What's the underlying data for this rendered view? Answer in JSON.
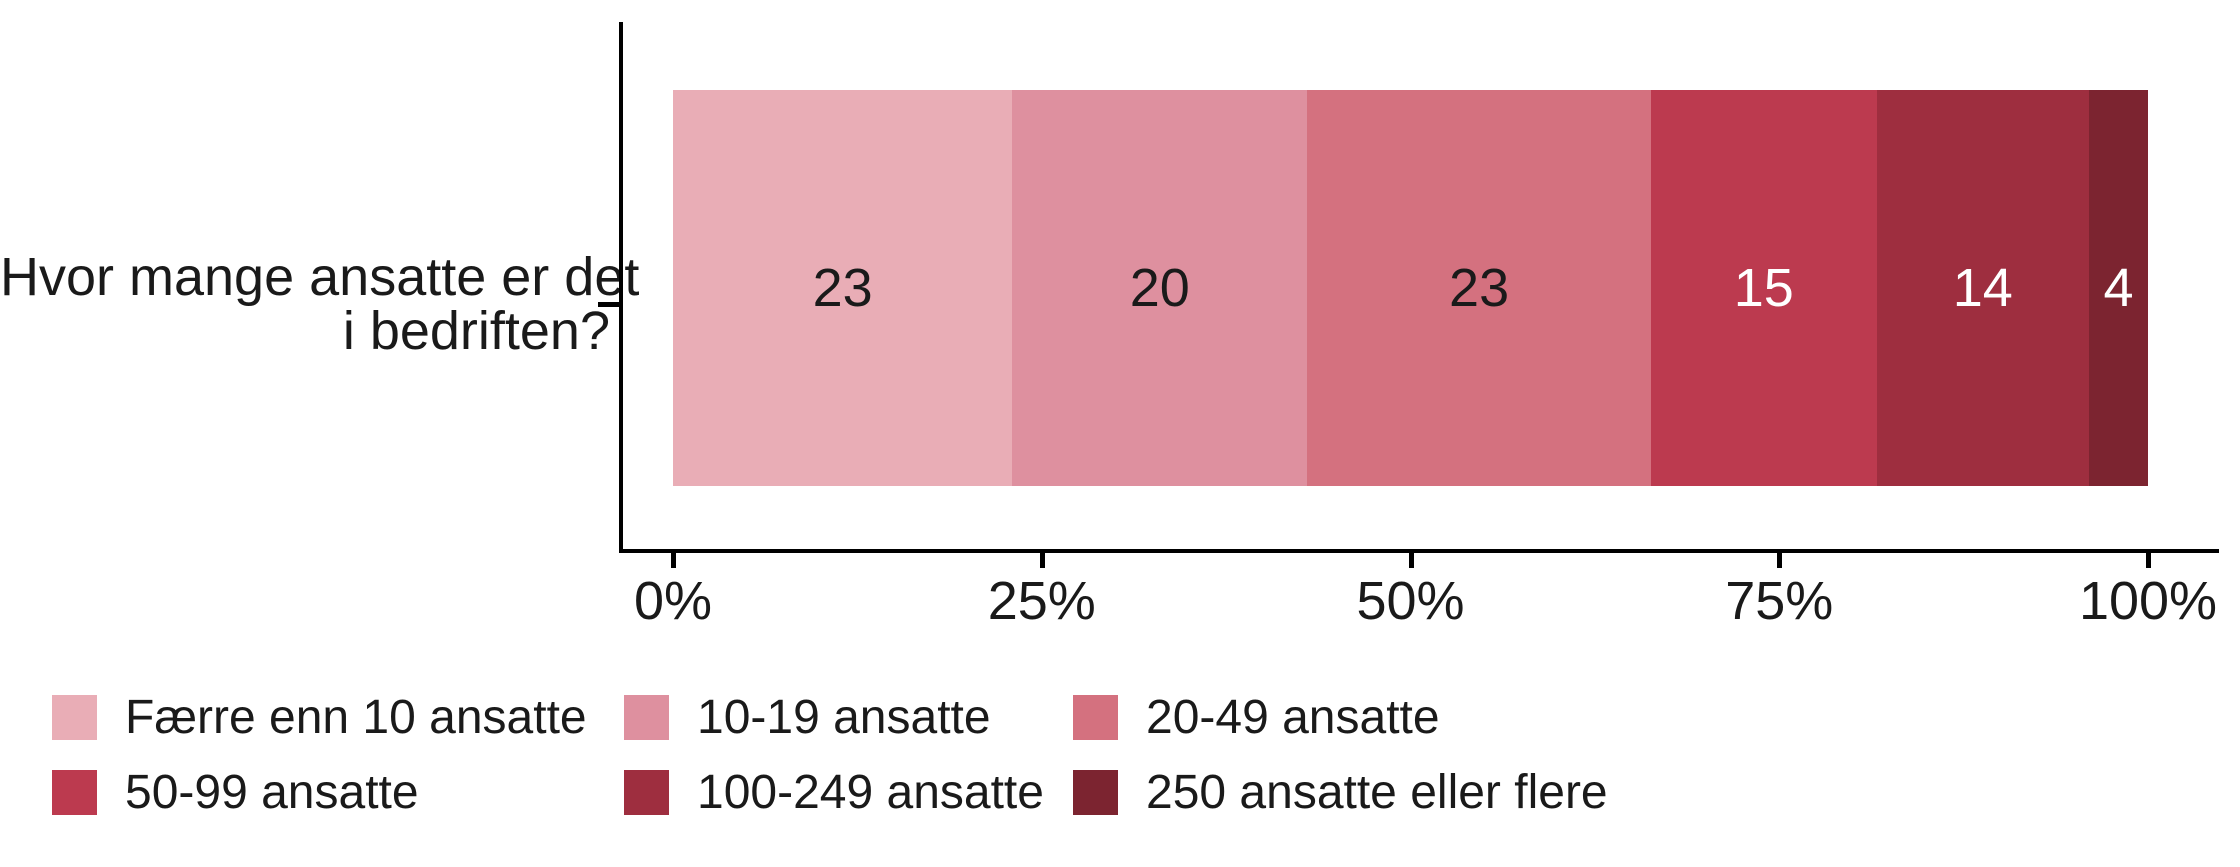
{
  "chart_data": {
    "type": "bar",
    "variant": "horizontal-stacked-percent",
    "title": "",
    "question_label_lines": [
      "Hvor mange ansatte er det",
      "i bedriften?"
    ],
    "x_ticks": [
      "0%",
      "25%",
      "50%",
      "75%",
      "100%"
    ],
    "xlim": [
      0,
      100
    ],
    "grid": false,
    "legend_position": "bottom",
    "axis_color": "#000000",
    "text_color": "#1a1a1a",
    "segments": [
      {
        "label": "Færre enn 10 ansatte",
        "value": "23",
        "pct": 23.0,
        "color": "#e9adb6",
        "value_color": "#1a1a1a"
      },
      {
        "label": "10-19 ansatte",
        "value": "20",
        "pct": 20.0,
        "color": "#de909f",
        "value_color": "#1a1a1a"
      },
      {
        "label": "20-49 ansatte",
        "value": "23",
        "pct": 23.3,
        "color": "#d4717f",
        "value_color": "#1a1a1a"
      },
      {
        "label": "50-99 ansatte",
        "value": "15",
        "pct": 15.3,
        "color": "#bc3a4f",
        "value_color": "#ffffff"
      },
      {
        "label": "100-249 ansatte",
        "value": "14",
        "pct": 14.4,
        "color": "#9e2e3f",
        "value_color": "#ffffff"
      },
      {
        "label": "250 ansatte eller flere",
        "value": "4",
        "pct": 4.0,
        "color": "#7c2430",
        "value_color": "#ffffff"
      }
    ]
  }
}
